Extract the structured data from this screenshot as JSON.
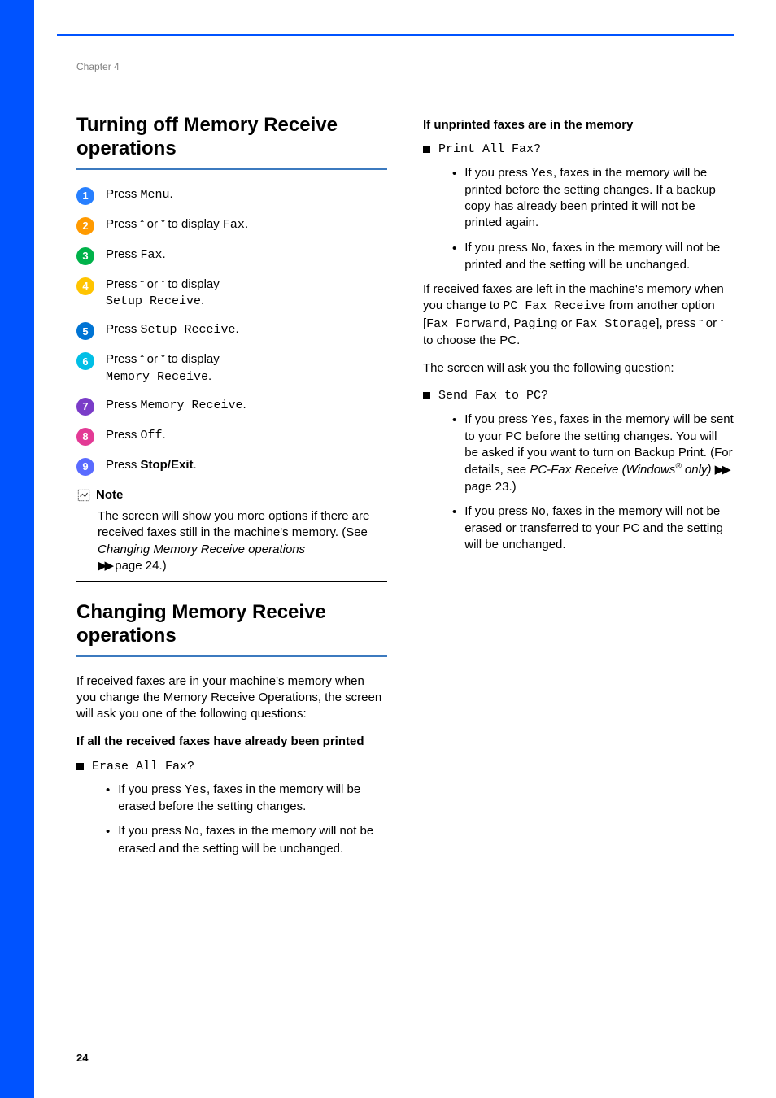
{
  "page": {
    "chapter_label": "Chapter 4",
    "page_number": "24",
    "sidebar_color": "#0053ff",
    "rule_color": "#3c7abf"
  },
  "step_colors": [
    "#277fff",
    "#ff9a00",
    "#00b24a",
    "#ffc400",
    "#0074d4",
    "#00bfe6",
    "#7a3cc8",
    "#e33a95",
    "#5a6bff"
  ],
  "left": {
    "section1_title": "Turning off Memory Receive operations",
    "steps": [
      {
        "pre": "Press ",
        "code": "Menu",
        "post": "."
      },
      {
        "pre": "Press ",
        "arrows": true,
        "mid": " to display ",
        "code": "Fax",
        "post": "."
      },
      {
        "pre": "Press ",
        "code": "Fax",
        "post": "."
      },
      {
        "pre": "Press ",
        "arrows": true,
        "mid": " to display",
        "code_line2": "Setup Receive",
        "post_line2": "."
      },
      {
        "pre": "Press ",
        "code": "Setup Receive",
        "post": "."
      },
      {
        "pre": "Press ",
        "arrows": true,
        "mid": " to display",
        "code_line2": "Memory Receive",
        "post_line2": "."
      },
      {
        "pre": "Press ",
        "code": "Memory Receive",
        "post": "."
      },
      {
        "pre": "Press ",
        "code": "Off",
        "post": "."
      },
      {
        "pre": "Press ",
        "bold": "Stop/Exit",
        "post": "."
      }
    ],
    "note_label": "Note",
    "note_body_1": "The screen will show you more options if there are received faxes still in the machine's memory. (See ",
    "note_body_italic": "Changing Memory Receive operations",
    "note_body_2": " page 24.)",
    "section2_title": "Changing Memory Receive operations",
    "section2_intro": "If received faxes are in your machine's memory when you change the Memory Receive Operations, the screen will ask you one of the following questions:",
    "sub1": "If all the received faxes have already been printed",
    "sub1_prompt": "Erase All Fax?",
    "sub1_bullets": [
      {
        "pre": "If you press ",
        "code": "Yes",
        "post": ", faxes in the memory will be erased before the setting changes."
      },
      {
        "pre": "If you press ",
        "code": "No",
        "post": ", faxes in the memory will not be erased and the setting will be unchanged."
      }
    ]
  },
  "right": {
    "sub2": "If unprinted faxes are in the memory",
    "sub2_prompt": "Print All Fax?",
    "sub2_bullets": [
      {
        "pre": "If you press ",
        "code": "Yes",
        "post": ", faxes in the memory will be printed before the setting changes. If a backup copy has already been printed it will not be printed again."
      },
      {
        "pre": "If you press ",
        "code": "No",
        "post": ", faxes in the memory will not be printed and the setting will be unchanged."
      }
    ],
    "para1_a": "If received faxes are left in the machine's memory when you change to",
    "para1_code1": "PC Fax Receive",
    "para1_b": " from another option [",
    "para1_code2": "Fax Forward",
    "para1_c": ", ",
    "para1_code3": "Paging",
    "para1_d": " or ",
    "para1_code4": "Fax Storage",
    "para1_e": "], press ",
    "para1_f": " to choose the PC.",
    "para2": "The screen will ask you the following question:",
    "sub3_prompt": "Send Fax to PC?",
    "sub3_bullets": [
      {
        "pre": "If you press ",
        "code": "Yes",
        "post_a": ", faxes in the memory will be sent to your PC before the setting changes. You will be asked if you want to turn on Backup Print. (For details, see ",
        "italic": "PC-Fax Receive (Windows",
        "sup": "®",
        "italic2": " only)",
        "post_b": " page 23.)"
      },
      {
        "pre": "If you press ",
        "code": "No",
        "post": ", faxes in the memory will not be erased or transferred to your PC and the setting will be unchanged."
      }
    ]
  }
}
